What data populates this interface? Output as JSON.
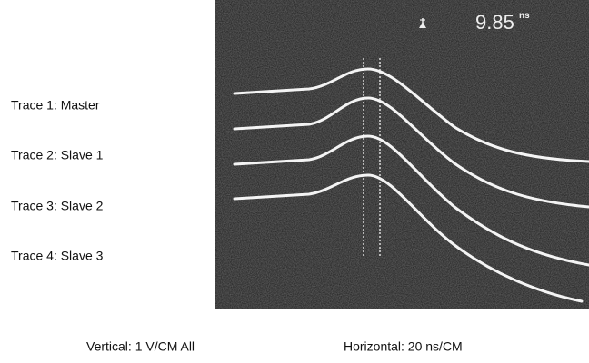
{
  "trace_labels": [
    "Trace 1: Master",
    "Trace 2: Slave 1",
    "Trace 3: Slave 2",
    "Trace 4: Slave 3"
  ],
  "readout": {
    "value": "9.85",
    "unit": "ns"
  },
  "captions": {
    "vertical": "Vertical: 1 V/CM All",
    "horizontal": "Horizontal: 20 ns/CM"
  }
}
